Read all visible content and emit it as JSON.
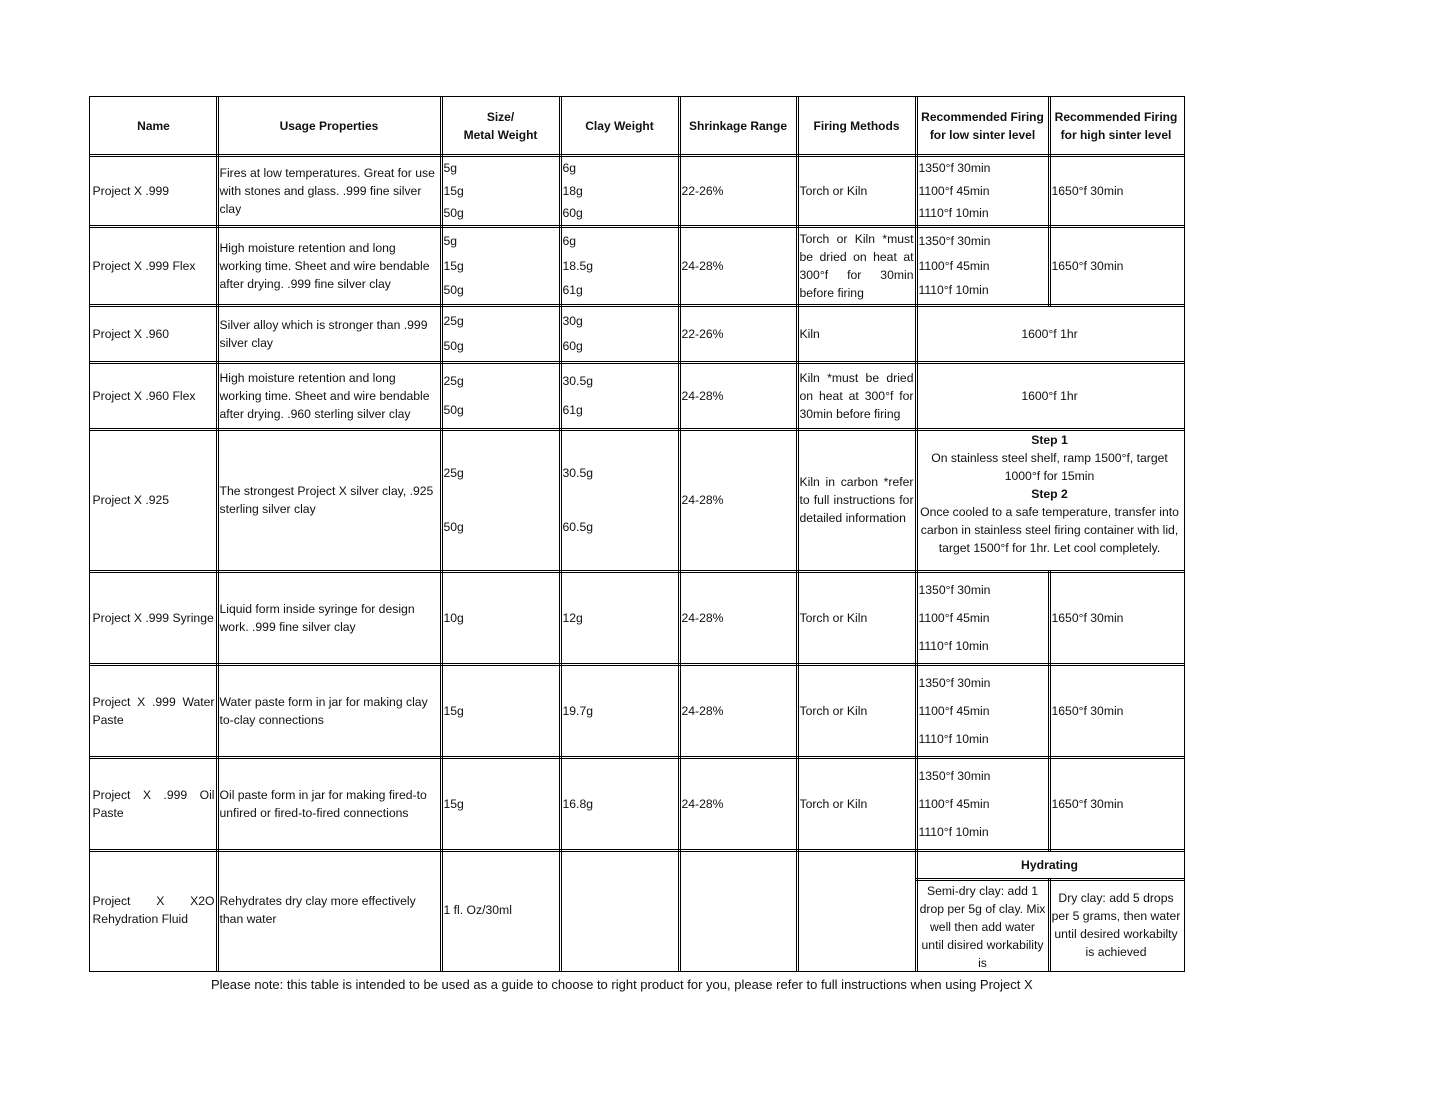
{
  "table": {
    "header": [
      "Name",
      "Usage Properties",
      [
        "Size/",
        "Metal Weight"
      ],
      "Clay Weight",
      "Shrinkage Range",
      "Firing Methods",
      "Recommended Firing for low sinter level",
      "Recommended Firing for high sinter level"
    ],
    "rows": [
      {
        "name": "Project X .999",
        "usage": "Fires at low temperatures. Great for use with stones and glass. .999 fine silver clay",
        "size": [
          "5g",
          "15g",
          "50g"
        ],
        "clay": [
          "6g",
          "18g",
          "60g"
        ],
        "shrinkage": "22-26%",
        "firing": "Torch or Kiln",
        "low": [
          "1350°f 30min",
          "1100°f 45min",
          "1110°f 10min"
        ],
        "high": "1650°f 30min"
      },
      {
        "name": "Project X .999 Flex",
        "usage": "High moisture retention and long working time. Sheet and wire bendable after drying. .999 fine silver clay",
        "size": [
          "5g",
          "15g",
          "50g"
        ],
        "clay": [
          "6g",
          "18.5g",
          "61g"
        ],
        "shrinkage": "24-28%",
        "firing": "Torch or Kiln *must be dried on heat at 300°f for 30min before firing",
        "low": [
          "1350°f 30min",
          "1100°f 45min",
          "1110°f 10min"
        ],
        "high": "1650°f 30min"
      },
      {
        "name": "Project X .960",
        "usage": "Silver alloy which is stronger than .999 silver clay",
        "size": [
          "25g",
          "50g"
        ],
        "clay": [
          "30g",
          "60g"
        ],
        "shrinkage": "22-26%",
        "firing": "Kiln",
        "both": "1600°f 1hr"
      },
      {
        "name": "Project X .960 Flex",
        "usage": "High moisture retention and long working time. Sheet and wire bendable after drying. .960 sterling silver clay",
        "size": [
          "25g",
          "50g"
        ],
        "clay": [
          "30.5g",
          "61g"
        ],
        "shrinkage": "24-28%",
        "firing": "Kiln *must be dried on heat at 300°f for 30min before firing",
        "both": "1600°f 1hr"
      },
      {
        "name": "Project X .925",
        "usage": "The strongest Project X silver clay, .925 sterling silver clay",
        "size": [
          "25g",
          "50g"
        ],
        "clay": [
          "30.5g",
          "60.5g"
        ],
        "shrinkage": "24-28%",
        "firing": "Kiln in carbon *refer to full instructions for detailed information",
        "steps": [
          {
            "title": "Step 1",
            "text": "On stainless steel shelf, ramp 1500°f, target 1000°f for 15min"
          },
          {
            "title": "Step 2",
            "text": "Once cooled to a safe temperature, transfer into carbon in stainless steel firing container with lid, target 1500°f for 1hr. Let cool completely."
          }
        ]
      },
      {
        "name": "Project X .999 Syringe",
        "usage": "Liquid form inside syringe for design work. .999 fine silver clay",
        "size": "10g",
        "clay": "12g",
        "shrinkage": "24-28%",
        "firing": "Torch or Kiln",
        "low": [
          "1350°f 30min",
          "1100°f 45min",
          "1110°f 10min"
        ],
        "high": "1650°f 30min"
      },
      {
        "name": "Project X .999 Water Paste",
        "usage": "Water paste form in jar for making clay to-clay connections",
        "size": "15g",
        "clay": "19.7g",
        "shrinkage": "24-28%",
        "firing": "Torch or Kiln",
        "low": [
          "1350°f 30min",
          "1100°f 45min",
          "1110°f 10min"
        ],
        "high": "1650°f 30min"
      },
      {
        "name": "Project X .999 Oil Paste",
        "usage": "Oil paste form in jar for making fired-to unfired or fired-to-fired connections",
        "size": "15g",
        "clay": "16.8g",
        "shrinkage": "24-28%",
        "firing": "Torch or Kiln",
        "low": [
          "1350°f 30min",
          "1100°f 45min",
          "1110°f 10min"
        ],
        "high": "1650°f 30min"
      },
      {
        "name": "Project X X2O Rehydration Fluid",
        "usage": "Rehydrates dry clay more effectively than water",
        "size": "1 fl. Oz/30ml",
        "hydrating": {
          "title": "Hydrating",
          "semi_dry": "Semi-dry clay: add 1 drop per 5g of clay. Mix well then add water until disired workability is",
          "dry": "Dry clay: add 5 drops per 5 grams, then water until desired workabilty is achieved"
        }
      }
    ]
  },
  "note": "Please note: this table is intended to be used as a guide to choose to right product for you, please refer to full instructions when using Project X"
}
